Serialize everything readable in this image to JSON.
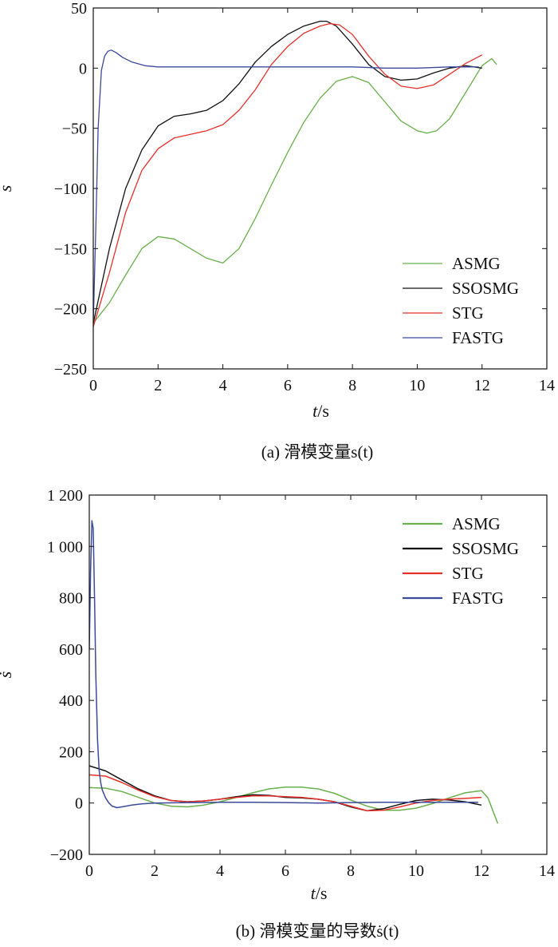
{
  "captions": {
    "a": "(a) 滑模变量s(t)",
    "b": "(b) 滑模变量的导数ṡ(t)"
  },
  "chart_data": [
    {
      "type": "line",
      "xlabel": "t/s",
      "ylabel": "s",
      "xlim": [
        0,
        14
      ],
      "ylim": [
        -250,
        50
      ],
      "xticks": [
        0,
        2,
        4,
        6,
        8,
        10,
        12,
        14
      ],
      "yticks": [
        50,
        0,
        -50,
        -100,
        -150,
        -200,
        -250
      ],
      "ytick_labels": [
        "50",
        "0",
        "−50",
        "−100",
        "−150",
        "−200",
        "−250"
      ],
      "legend_position": "bottom-right",
      "grid": false,
      "series": [
        {
          "name": "ASMG",
          "color": "#6ab04c",
          "x": [
            0,
            0.5,
            1,
            1.5,
            2,
            2.5,
            3,
            3.5,
            4,
            4.5,
            5,
            5.5,
            6,
            6.5,
            7,
            7.5,
            8,
            8.5,
            9,
            9.5,
            10,
            10.3,
            10.6,
            11,
            11.5,
            12,
            12.3,
            12.45
          ],
          "y": [
            -212,
            -195,
            -172,
            -150,
            -140,
            -142,
            -150,
            -158,
            -162,
            -150,
            -125,
            -97,
            -70,
            -45,
            -25,
            -11,
            -7,
            -12,
            -28,
            -44,
            -52,
            -54,
            -52,
            -42,
            -20,
            2,
            8,
            3
          ]
        },
        {
          "name": "SSOSMG",
          "color": "#111111",
          "x": [
            0,
            0.5,
            1,
            1.5,
            2,
            2.5,
            3,
            3.5,
            4,
            4.5,
            5,
            5.5,
            6,
            6.5,
            7,
            7.2,
            7.5,
            8,
            8.5,
            9,
            9.5,
            10,
            10.5,
            11,
            11.5,
            12
          ],
          "y": [
            -212,
            -150,
            -100,
            -68,
            -48,
            -40,
            -38,
            -35,
            -27,
            -13,
            5,
            18,
            28,
            35,
            39,
            39,
            35,
            20,
            3,
            -7,
            -10,
            -9,
            -4,
            0,
            2,
            0
          ]
        },
        {
          "name": "STG",
          "color": "#e8302a",
          "x": [
            0,
            0.5,
            1,
            1.5,
            2,
            2.5,
            3,
            3.5,
            4,
            4.5,
            5,
            5.5,
            6,
            6.5,
            7,
            7.3,
            7.6,
            8,
            8.5,
            9,
            9.5,
            10,
            10.5,
            11,
            11.5,
            12
          ],
          "y": [
            -215,
            -170,
            -120,
            -85,
            -67,
            -58,
            -55,
            -52,
            -47,
            -35,
            -18,
            3,
            18,
            29,
            35,
            37,
            36,
            28,
            10,
            -5,
            -15,
            -17,
            -14,
            -5,
            4,
            11
          ]
        },
        {
          "name": "FASTG",
          "color": "#3b4a9a",
          "x": [
            0,
            0.08,
            0.15,
            0.25,
            0.35,
            0.45,
            0.55,
            0.7,
            0.9,
            1.2,
            1.6,
            2,
            3,
            4,
            5,
            6,
            7,
            8,
            9,
            10,
            11,
            11.9
          ],
          "y": [
            -212,
            -130,
            -50,
            -2,
            10,
            14,
            15,
            13,
            9,
            5,
            2,
            1,
            1,
            1,
            1,
            1,
            1,
            1,
            0,
            0,
            1,
            1
          ]
        }
      ]
    },
    {
      "type": "line",
      "xlabel": "t/s",
      "ylabel": "ṡ",
      "xlim": [
        0,
        14
      ],
      "ylim": [
        -200,
        1200
      ],
      "xticks": [
        0,
        2,
        4,
        6,
        8,
        10,
        12,
        14
      ],
      "yticks": [
        1200,
        1000,
        800,
        600,
        400,
        200,
        0,
        -200
      ],
      "ytick_labels": [
        "1 200",
        "1 000",
        "800",
        "600",
        "400",
        "200",
        "0",
        "−200"
      ],
      "legend_position": "top-right",
      "grid": false,
      "series": [
        {
          "name": "ASMG",
          "color": "#6ab04c",
          "x": [
            0,
            0.5,
            1,
            1.5,
            2,
            2.5,
            3,
            3.5,
            4,
            4.5,
            5,
            5.5,
            6,
            6.5,
            7,
            7.5,
            8,
            8.5,
            9,
            9.5,
            10,
            10.5,
            11,
            11.5,
            12,
            12.2,
            12.35,
            12.5
          ],
          "y": [
            60,
            58,
            45,
            22,
            0,
            -12,
            -15,
            -8,
            5,
            22,
            40,
            55,
            62,
            62,
            55,
            38,
            12,
            -12,
            -28,
            -28,
            -20,
            -2,
            20,
            40,
            48,
            20,
            -30,
            -80
          ]
        },
        {
          "name": "SSOSMG",
          "color": "#111111",
          "x": [
            0,
            0.5,
            1,
            1.5,
            2,
            2.5,
            3,
            3.5,
            4,
            4.5,
            5,
            5.5,
            6,
            6.5,
            7,
            7.5,
            8,
            8.5,
            9,
            9.5,
            10,
            10.5,
            11,
            11.5,
            12
          ],
          "y": [
            145,
            125,
            90,
            55,
            28,
            10,
            5,
            8,
            15,
            25,
            32,
            30,
            22,
            20,
            15,
            5,
            -15,
            -30,
            -22,
            -5,
            10,
            15,
            12,
            5,
            -8
          ]
        },
        {
          "name": "STG",
          "color": "#e8302a",
          "x": [
            0,
            0.5,
            1,
            1.5,
            2,
            2.5,
            3,
            3.5,
            4,
            4.5,
            5,
            5.5,
            6,
            6.5,
            7,
            7.5,
            8,
            8.5,
            9,
            9.5,
            10,
            10.5,
            11,
            11.5,
            12
          ],
          "y": [
            110,
            105,
            80,
            50,
            25,
            10,
            5,
            8,
            15,
            22,
            28,
            28,
            25,
            22,
            15,
            5,
            -12,
            -30,
            -28,
            -15,
            0,
            10,
            15,
            18,
            22
          ]
        },
        {
          "name": "FASTG",
          "color": "#3b4a9a",
          "x": [
            0,
            0.04,
            0.08,
            0.12,
            0.16,
            0.2,
            0.25,
            0.3,
            0.35,
            0.4,
            0.5,
            0.6,
            0.7,
            0.85,
            1,
            1.3,
            1.6,
            2,
            3,
            4,
            5,
            6,
            7,
            8,
            9,
            10,
            11,
            11.9
          ],
          "y": [
            600,
            900,
            1100,
            1070,
            800,
            500,
            250,
            130,
            80,
            50,
            20,
            0,
            -12,
            -18,
            -15,
            -8,
            -3,
            0,
            2,
            3,
            3,
            2,
            0,
            2,
            3,
            3,
            3,
            3
          ]
        }
      ]
    }
  ]
}
